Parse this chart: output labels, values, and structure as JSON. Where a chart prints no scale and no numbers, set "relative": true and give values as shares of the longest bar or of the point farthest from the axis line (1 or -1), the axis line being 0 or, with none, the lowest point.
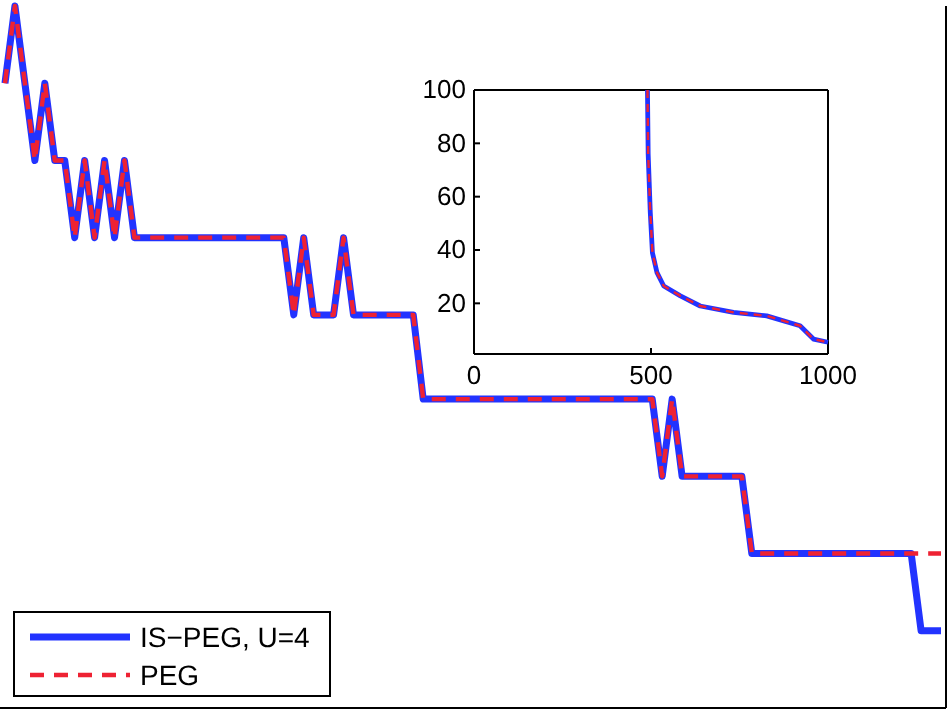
{
  "chart_data": [
    {
      "type": "line",
      "relative": true,
      "legend": "bottom left",
      "categories": [
        null,
        null,
        null,
        null,
        null,
        null,
        null,
        null,
        null,
        null,
        null,
        null,
        null,
        null,
        null,
        null,
        null,
        null,
        null,
        null,
        null,
        null,
        null,
        null,
        null,
        null,
        null,
        null,
        null,
        null,
        null,
        null,
        null,
        null,
        null,
        null,
        null,
        null,
        null,
        null,
        null,
        null,
        null,
        null,
        null,
        null,
        null,
        null,
        null,
        null,
        null,
        null,
        null,
        null,
        null,
        null,
        null,
        null,
        null,
        null,
        null,
        null,
        null,
        null,
        null,
        null,
        null,
        null,
        null,
        null,
        null,
        null,
        null,
        null,
        null,
        null,
        null,
        null,
        null,
        null,
        null,
        null,
        null,
        null,
        null,
        null,
        null,
        null,
        null,
        null,
        null,
        null,
        null,
        null,
        null
      ],
      "series": [
        {
          "name": "IS−PEG, U=4",
          "color": "#2233ff",
          "line_style": "solid",
          "values": [
            0.89,
            1,
            0.89,
            0.78,
            0.89,
            0.78,
            0.78,
            0.67,
            0.78,
            0.67,
            0.78,
            0.67,
            0.78,
            0.67,
            0.67,
            0.67,
            0.67,
            0.67,
            0.67,
            0.67,
            0.67,
            0.67,
            0.67,
            0.67,
            0.67,
            0.67,
            0.67,
            0.67,
            0.67,
            0.56,
            0.67,
            0.56,
            0.56,
            0.56,
            0.67,
            0.56,
            0.56,
            0.56,
            0.56,
            0.56,
            0.56,
            0.56,
            0.44,
            0.44,
            0.44,
            0.44,
            0.44,
            0.44,
            0.44,
            0.44,
            0.44,
            0.44,
            0.44,
            0.44,
            0.44,
            0.44,
            0.44,
            0.44,
            0.44,
            0.44,
            0.44,
            0.44,
            0.44,
            0.44,
            0.44,
            0.44,
            0.33,
            0.44,
            0.33,
            0.33,
            0.33,
            0.33,
            0.33,
            0.33,
            0.33,
            0.22,
            0.22,
            0.22,
            0.22,
            0.22,
            0.22,
            0.22,
            0.22,
            0.22,
            0.22,
            0.22,
            0.22,
            0.22,
            0.22,
            0.22,
            0.22,
            0.22,
            0.11,
            0.11,
            0.11
          ]
        },
        {
          "name": "PEG",
          "color": "#ee2233",
          "line_style": "dashed",
          "values": [
            0.89,
            1,
            0.89,
            0.78,
            0.89,
            0.78,
            0.78,
            0.67,
            0.78,
            0.67,
            0.78,
            0.67,
            0.78,
            0.67,
            0.67,
            0.67,
            0.67,
            0.67,
            0.67,
            0.67,
            0.67,
            0.67,
            0.67,
            0.67,
            0.67,
            0.67,
            0.67,
            0.67,
            0.67,
            0.56,
            0.67,
            0.56,
            0.56,
            0.56,
            0.67,
            0.56,
            0.56,
            0.56,
            0.56,
            0.56,
            0.56,
            0.56,
            0.44,
            0.44,
            0.44,
            0.44,
            0.44,
            0.44,
            0.44,
            0.44,
            0.44,
            0.44,
            0.44,
            0.44,
            0.44,
            0.44,
            0.44,
            0.44,
            0.44,
            0.44,
            0.44,
            0.44,
            0.44,
            0.44,
            0.44,
            0.44,
            0.33,
            0.44,
            0.33,
            0.33,
            0.33,
            0.33,
            0.33,
            0.33,
            0.33,
            0.22,
            0.22,
            0.22,
            0.22,
            0.22,
            0.22,
            0.22,
            0.22,
            0.22,
            0.22,
            0.22,
            0.22,
            0.22,
            0.22,
            0.22,
            0.22,
            0.22,
            0.22,
            0.22,
            0.22
          ]
        }
      ]
    },
    {
      "type": "line",
      "xlim": [
        0,
        1000
      ],
      "ylim": [
        1,
        100
      ],
      "xticks": [
        0,
        500,
        1000
      ],
      "yticks": [
        20,
        40,
        60,
        80,
        100
      ],
      "series": [
        {
          "color": "#2233ff",
          "line_style": "solid",
          "x": [
            490,
            492,
            498,
            504,
            517,
            536,
            583,
            639,
            733,
            827,
            921,
            959,
            1000
          ],
          "values": [
            100,
            76,
            54,
            39,
            31.5,
            26.5,
            22.8,
            19,
            16.6,
            15.3,
            11.6,
            6.6,
            5.4
          ]
        },
        {
          "color": "#ee2233",
          "line_style": "dashed",
          "x": [
            490,
            492,
            498,
            504,
            517,
            536,
            583,
            639,
            733,
            827,
            921,
            959,
            1000
          ],
          "values": [
            100,
            76,
            54,
            39,
            31.5,
            26.5,
            22.8,
            19,
            16.6,
            15.3,
            11.6,
            6.6,
            5.4
          ]
        }
      ]
    }
  ]
}
